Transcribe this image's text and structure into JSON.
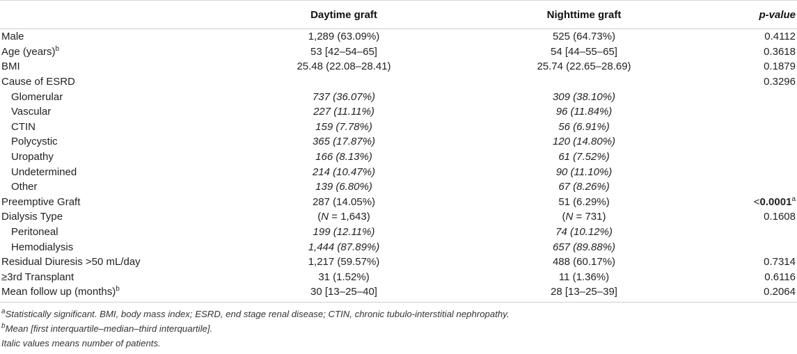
{
  "header": {
    "col0": "",
    "col1": "Daytime graft",
    "col2": "Nighttime graft",
    "col3": "p-value"
  },
  "rows": [
    {
      "label": "Male",
      "sup": "",
      "v1": "1,289 (63.09%)",
      "v2": "525 (64.73%)",
      "p": "0.4112"
    },
    {
      "label": "Age (years)",
      "sup": "b",
      "v1": "53 [42–54–65]",
      "v2": "54 [44–55–65]",
      "p": "0.3618"
    },
    {
      "label": "BMI",
      "sup": "",
      "v1": "25.48 (22.08–28.41)",
      "v2": "25.74 (22.65–28.69)",
      "p": "0.1879"
    },
    {
      "label": "Cause of ESRD",
      "sup": "",
      "v1": "",
      "v2": "",
      "p": "0.3296"
    },
    {
      "label": "Glomerular",
      "sup": "",
      "v1": "737 (36.07%)",
      "v2": "309 (38.10%)",
      "p": ""
    },
    {
      "label": "Vascular",
      "sup": "",
      "v1": "227 (11.11%)",
      "v2": "96 (11.84%)",
      "p": ""
    },
    {
      "label": "CTIN",
      "sup": "",
      "v1": "159 (7.78%)",
      "v2": "56 (6.91%)",
      "p": ""
    },
    {
      "label": "Polycystic",
      "sup": "",
      "v1": "365 (17.87%)",
      "v2": "120 (14.80%)",
      "p": ""
    },
    {
      "label": "Uropathy",
      "sup": "",
      "v1": "166 (8.13%)",
      "v2": "61 (7.52%)",
      "p": ""
    },
    {
      "label": "Undetermined",
      "sup": "",
      "v1": "214 (10.47%)",
      "v2": "90 (11.10%)",
      "p": ""
    },
    {
      "label": "Other",
      "sup": "",
      "v1": "139 (6.80%)",
      "v2": "67 (8.26%)",
      "p": ""
    },
    {
      "label": "Preemptive Graft",
      "sup": "",
      "v1": "287 (14.05%)",
      "v2": "51 (6.29%)",
      "p_prefix": "<",
      "p": "0.0001",
      "p_sup": "a"
    },
    {
      "label": "Dialysis Type",
      "sup": "",
      "v1_pre": "(",
      "v1_n": "N",
      "v1": " = 1,643)",
      "v2_pre": "(",
      "v2_n": "N",
      "v2": " = 731)",
      "p": "0.1608"
    },
    {
      "label": "Peritoneal",
      "sup": "",
      "v1": "199 (12.11%)",
      "v2": "74 (10.12%)",
      "p": ""
    },
    {
      "label": "Hemodialysis",
      "sup": "",
      "v1": "1,444 (87.89%)",
      "v2": "657 (89.88%)",
      "p": ""
    },
    {
      "label": "Residual Diuresis >50 mL/day",
      "sup": "",
      "v1": "1,217 (59.57%)",
      "v2": "488 (60.17%)",
      "p": "0.7314"
    },
    {
      "label": "≥3rd Transplant",
      "sup": "",
      "v1": "31 (1.52%)",
      "v2": "11 (1.36%)",
      "p": "0.6116"
    },
    {
      "label": "Mean follow up (months)",
      "sup": "b",
      "v1": "30 [13–25–40]",
      "v2": "28 [13–25–39]",
      "p": "0.2064"
    }
  ],
  "footnotes": {
    "a_mark": "a",
    "a_text": "Statistically significant. BMI, body mass index; ESRD, end stage renal disease; CTIN, chronic tubulo-interstitial nephropathy.",
    "b_mark": "b",
    "b_text": "Mean [first interquartile–median–third interquartile].",
    "c_text": "Italic values means number of patients."
  }
}
